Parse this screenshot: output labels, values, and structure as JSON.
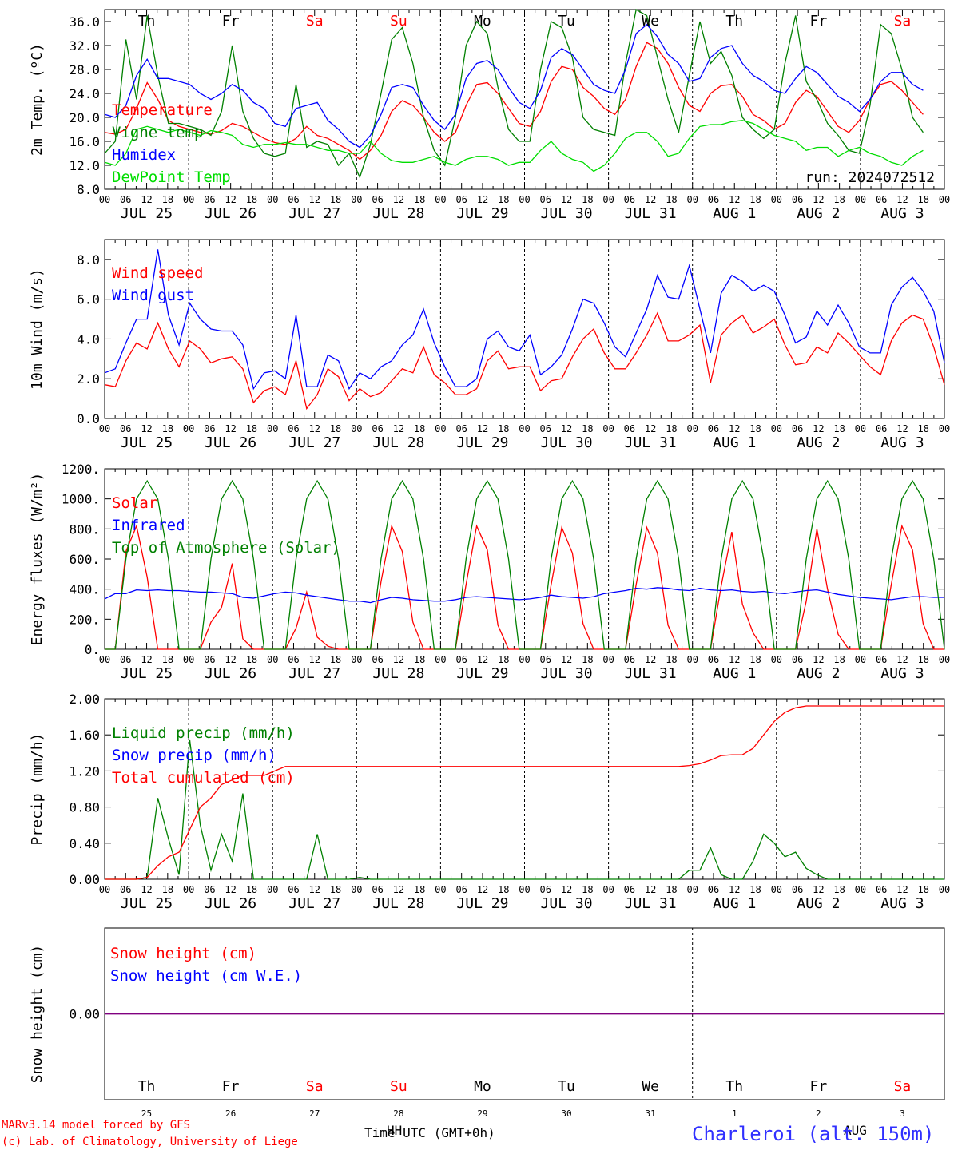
{
  "site": "Charleroi (alt. 150m)",
  "run_label": "run: 2024072512",
  "footer": {
    "model": "MARv3.14 model forced by GFS",
    "copyright": "(c) Lab. of Climatology, University of Liege",
    "time_label": "Time UTC (GMT+0h)",
    "overlap_text_1": "HH",
    "overlap_text_2": "AUG"
  },
  "colors": {
    "red": "#ff0000",
    "blue": "#0000ff",
    "green": "#008000",
    "lightgreen": "#00dd00",
    "purple": "#800080"
  },
  "days": [
    {
      "dow": "Th",
      "date": "JUL 25",
      "num": "25",
      "weekend": false
    },
    {
      "dow": "Fr",
      "date": "JUL 26",
      "num": "26",
      "weekend": false
    },
    {
      "dow": "Sa",
      "date": "JUL 27",
      "num": "27",
      "weekend": true
    },
    {
      "dow": "Su",
      "date": "JUL 28",
      "num": "28",
      "weekend": true
    },
    {
      "dow": "Mo",
      "date": "JUL 29",
      "num": "29",
      "weekend": false
    },
    {
      "dow": "Tu",
      "date": "JUL 30",
      "num": "30",
      "weekend": false
    },
    {
      "dow": "We",
      "date": "JUL 31",
      "num": "31",
      "weekend": false
    },
    {
      "dow": "Th",
      "date": "AUG 1",
      "num": "1",
      "weekend": false
    },
    {
      "dow": "Fr",
      "date": "AUG 2",
      "num": "2",
      "weekend": false
    },
    {
      "dow": "Sa",
      "date": "AUG 3",
      "num": "3",
      "weekend": true
    }
  ],
  "hour_ticks": [
    "00",
    "06",
    "12",
    "18"
  ],
  "end_tick": "00",
  "chart_data": [
    {
      "type": "line",
      "ylabel": "2m Temp. (ºC)",
      "ylim": [
        8,
        38
      ],
      "yticks": [
        "8.0",
        "12.0",
        "16.0",
        "20.0",
        "24.0",
        "28.0",
        "32.0",
        "36.0"
      ],
      "x": "hours since JUL 25 00 UTC, every 3h",
      "series": [
        {
          "name": "Temperature",
          "color": "red",
          "values": [
            17.5,
            17.2,
            18,
            21.5,
            25.8,
            23,
            19.5,
            18.5,
            18,
            17.5,
            17.2,
            17.8,
            19,
            18.5,
            17.5,
            16.5,
            15.8,
            15.5,
            16.5,
            18.5,
            17,
            16.5,
            15.5,
            14.5,
            13,
            14.5,
            17,
            21,
            22.8,
            22,
            20,
            17.5,
            16,
            17.5,
            22,
            25.5,
            25.8,
            24,
            21.5,
            19,
            18.5,
            21,
            26,
            28.5,
            28,
            25,
            23.5,
            21.5,
            20.5,
            23,
            28.5,
            32.5,
            31.5,
            29,
            25,
            22,
            21,
            24,
            25.3,
            25.5,
            23.5,
            20.5,
            19.5,
            18,
            19,
            22.5,
            24.5,
            23.5,
            21,
            18.5,
            17.5,
            19.5,
            23,
            25.5,
            26,
            24.5,
            22.5,
            20.5
          ]
        },
        {
          "name": "Vigne temp",
          "color": "green",
          "values": [
            14,
            16,
            33,
            23,
            37,
            27,
            19,
            19,
            18.5,
            18,
            17,
            21,
            32,
            21,
            16.5,
            14,
            13.5,
            14,
            25.5,
            15,
            16,
            15.5,
            12,
            14,
            10,
            15.5,
            24,
            33,
            35,
            29,
            20,
            14.5,
            12,
            20,
            32,
            36,
            34,
            25,
            18,
            16,
            16,
            28,
            36,
            35,
            30,
            20,
            18,
            17.5,
            17,
            29,
            38,
            37,
            30,
            23,
            17.5,
            27,
            36,
            29,
            31,
            27,
            20,
            18,
            16.5,
            18,
            29,
            37,
            26,
            23,
            19,
            17,
            14.5,
            14,
            22,
            35.5,
            34,
            28,
            20,
            17.5
          ]
        },
        {
          "name": "Humidex",
          "color": "blue",
          "values": [
            20.5,
            20,
            22,
            27,
            29.7,
            26.5,
            26.5,
            26,
            25.5,
            24,
            23,
            24,
            25.5,
            24.5,
            22.5,
            21.5,
            19,
            18.5,
            21.5,
            22,
            22.5,
            19.5,
            18,
            16,
            15,
            17,
            20.5,
            25,
            25.5,
            25,
            22,
            19.5,
            18,
            20.5,
            26.5,
            29,
            29.5,
            28,
            25,
            22.5,
            21.5,
            24.5,
            30,
            31.5,
            30.5,
            28,
            25.5,
            24.5,
            24,
            28,
            34,
            35.5,
            33.5,
            30.5,
            29,
            26,
            26.5,
            30,
            31.5,
            32,
            29,
            27,
            26,
            24.5,
            24,
            26.5,
            28.5,
            27.5,
            25.5,
            23.5,
            22.5,
            21,
            23,
            26,
            27.5,
            27.5,
            25.5,
            24.5
          ]
        },
        {
          "name": "DewPoint Temp",
          "color": "lightgreen",
          "values": [
            12.5,
            12,
            14,
            18,
            18.5,
            18,
            17.5,
            18,
            17.5,
            17,
            17.8,
            17.5,
            17,
            15.5,
            15,
            15.5,
            15.5,
            15.8,
            15.5,
            15.5,
            15,
            14.5,
            14.5,
            14,
            14,
            16,
            14,
            12.8,
            12.5,
            12.5,
            13,
            13.5,
            12.5,
            12,
            13,
            13.5,
            13.5,
            13,
            12,
            12.5,
            12.5,
            14.5,
            16,
            14,
            13,
            12.5,
            11,
            12,
            14,
            16.5,
            17.5,
            17.5,
            16,
            13.5,
            14,
            16.5,
            18.5,
            18.8,
            18.8,
            19.3,
            19.5,
            19,
            18,
            17,
            16.5,
            16,
            14.5,
            15,
            15,
            13.5,
            14.5,
            15,
            14,
            13.5,
            12.5,
            12,
            13.5,
            14.5
          ]
        }
      ]
    },
    {
      "type": "line",
      "ylabel": "10m Wind (m/s)",
      "ylim": [
        0,
        9
      ],
      "yticks": [
        "0.0",
        "2.0",
        "4.0",
        "6.0",
        "8.0"
      ],
      "reference_line": 5,
      "series": [
        {
          "name": "Wind speed",
          "color": "red",
          "values": [
            1.7,
            1.6,
            2.9,
            3.8,
            3.5,
            4.8,
            3.5,
            2.6,
            3.9,
            3.5,
            2.8,
            3,
            3.1,
            2.5,
            0.8,
            1.4,
            1.6,
            1.2,
            2.9,
            0.5,
            1.2,
            2.5,
            2.1,
            0.9,
            1.5,
            1.1,
            1.3,
            1.9,
            2.5,
            2.3,
            3.6,
            2.2,
            1.8,
            1.2,
            1.2,
            1.5,
            2.9,
            3.4,
            2.5,
            2.6,
            2.6,
            1.4,
            1.9,
            2,
            3.1,
            4,
            4.5,
            3.3,
            2.5,
            2.5,
            3.3,
            4.2,
            5.3,
            3.9,
            3.9,
            4.2,
            4.7,
            1.8,
            4.2,
            4.8,
            5.2,
            4.3,
            4.6,
            5,
            3.7,
            2.7,
            2.8,
            3.6,
            3.3,
            4.3,
            3.8,
            3.2,
            2.6,
            2.2,
            3.9,
            4.8,
            5.2,
            5,
            3.6,
            1.7
          ]
        },
        {
          "name": "Wind gust",
          "color": "blue",
          "values": [
            2.3,
            2.5,
            3.8,
            5,
            5,
            8.5,
            5.2,
            3.7,
            5.8,
            5,
            4.5,
            4.4,
            4.4,
            3.7,
            1.5,
            2.3,
            2.4,
            2,
            5.2,
            1.6,
            1.6,
            3.2,
            2.9,
            1.5,
            2.3,
            2,
            2.6,
            2.9,
            3.7,
            4.2,
            5.5,
            3.8,
            2.6,
            1.6,
            1.6,
            2,
            4,
            4.4,
            3.6,
            3.4,
            4.2,
            2.2,
            2.6,
            3.2,
            4.5,
            6,
            5.8,
            4.8,
            3.6,
            3.1,
            4.3,
            5.5,
            7.2,
            6.1,
            6,
            7.7,
            5.5,
            3.3,
            6.3,
            7.2,
            6.9,
            6.4,
            6.7,
            6.4,
            5.2,
            3.8,
            4.1,
            5.4,
            4.7,
            5.7,
            4.8,
            3.6,
            3.3,
            3.3,
            5.7,
            6.6,
            7.1,
            6.4,
            5.4,
            2.8
          ]
        }
      ]
    },
    {
      "type": "line",
      "ylabel": "Energy fluxes (W/m²)",
      "ylim": [
        0,
        1200
      ],
      "yticks": [
        "0.",
        "200.",
        "400.",
        "600.",
        "800.",
        "1000.",
        "1200."
      ],
      "series": [
        {
          "name": "Solar",
          "color": "red",
          "values": [
            0,
            0,
            650,
            820,
            480,
            0,
            0,
            0,
            0,
            0,
            180,
            280,
            570,
            70,
            0,
            0,
            0,
            0,
            140,
            380,
            80,
            20,
            0,
            0,
            0,
            0,
            450,
            820,
            650,
            180,
            0,
            0,
            0,
            0,
            430,
            820,
            660,
            160,
            0,
            0,
            0,
            0,
            430,
            810,
            640,
            170,
            0,
            0,
            0,
            0,
            430,
            810,
            640,
            160,
            0,
            0,
            0,
            0,
            420,
            780,
            300,
            110,
            0,
            0,
            0,
            0,
            320,
            800,
            400,
            100,
            0,
            0,
            0,
            0,
            430,
            820,
            660,
            170,
            0,
            0
          ]
        },
        {
          "name": "Infrared",
          "color": "blue",
          "values": [
            335,
            370,
            370,
            395,
            390,
            395,
            390,
            390,
            385,
            380,
            380,
            375,
            370,
            345,
            340,
            355,
            370,
            380,
            375,
            360,
            350,
            340,
            330,
            320,
            320,
            310,
            330,
            345,
            340,
            330,
            325,
            320,
            320,
            330,
            345,
            350,
            345,
            340,
            335,
            330,
            335,
            345,
            360,
            350,
            345,
            340,
            350,
            370,
            380,
            390,
            405,
            400,
            410,
            405,
            395,
            390,
            405,
            395,
            390,
            395,
            385,
            380,
            385,
            375,
            370,
            380,
            390,
            395,
            380,
            365,
            355,
            345,
            340,
            335,
            330,
            340,
            350,
            350,
            345,
            345
          ]
        },
        {
          "name": "Top of Atmosphere (Solar)",
          "color": "green",
          "values": [
            0,
            0,
            600,
            1000,
            1120,
            1000,
            600,
            0,
            0,
            0,
            600,
            1000,
            1120,
            1000,
            600,
            0,
            0,
            0,
            600,
            1000,
            1120,
            1000,
            600,
            0,
            0,
            0,
            600,
            1000,
            1120,
            1000,
            600,
            0,
            0,
            0,
            600,
            1000,
            1120,
            1000,
            600,
            0,
            0,
            0,
            600,
            1000,
            1120,
            1000,
            600,
            0,
            0,
            0,
            600,
            1000,
            1120,
            1000,
            600,
            0,
            0,
            0,
            600,
            1000,
            1120,
            1000,
            600,
            0,
            0,
            0,
            600,
            1000,
            1120,
            1000,
            600,
            0,
            0,
            0,
            600,
            1000,
            1120,
            1000,
            600,
            0
          ]
        }
      ]
    },
    {
      "type": "line",
      "ylabel": "Precip (mm/h)",
      "ylim": [
        0,
        2
      ],
      "yticks": [
        "0.00",
        "0.40",
        "0.80",
        "1.20",
        "1.60",
        "2.00"
      ],
      "series": [
        {
          "name": "Liquid precip (mm/h)",
          "color": "green",
          "values": [
            0,
            0,
            0,
            0,
            0.02,
            0.9,
            0.45,
            0.05,
            1.55,
            0.6,
            0.1,
            0.5,
            0.2,
            0.95,
            0,
            0,
            0,
            0,
            0,
            0,
            0.5,
            0,
            0,
            0,
            0.02,
            0,
            0,
            0,
            0,
            0,
            0,
            0,
            0,
            0,
            0,
            0,
            0,
            0,
            0,
            0,
            0,
            0,
            0,
            0,
            0,
            0,
            0,
            0,
            0,
            0,
            0,
            0,
            0,
            0,
            0,
            0.1,
            0.1,
            0.35,
            0.05,
            0,
            0,
            0.2,
            0.5,
            0.4,
            0.25,
            0.3,
            0.12,
            0.05,
            0,
            0,
            0,
            0,
            0,
            0,
            0,
            0,
            0,
            0,
            0,
            0
          ]
        },
        {
          "name": "Snow precip (mm/h)",
          "color": "blue",
          "values": []
        },
        {
          "name": "Total cumulated (cm)",
          "color": "red",
          "values": [
            0,
            0,
            0,
            0,
            0.02,
            0.15,
            0.25,
            0.3,
            0.55,
            0.8,
            0.9,
            1.05,
            1.1,
            1.15,
            1.15,
            1.15,
            1.2,
            1.25,
            1.25,
            1.25,
            1.25,
            1.25,
            1.25,
            1.25,
            1.25,
            1.25,
            1.25,
            1.25,
            1.25,
            1.25,
            1.25,
            1.25,
            1.25,
            1.25,
            1.25,
            1.25,
            1.25,
            1.25,
            1.25,
            1.25,
            1.25,
            1.25,
            1.25,
            1.25,
            1.25,
            1.25,
            1.25,
            1.25,
            1.25,
            1.25,
            1.25,
            1.25,
            1.25,
            1.25,
            1.25,
            1.26,
            1.28,
            1.32,
            1.37,
            1.38,
            1.38,
            1.45,
            1.6,
            1.75,
            1.85,
            1.9,
            1.92,
            1.92,
            1.92,
            1.92,
            1.92,
            1.92,
            1.92,
            1.92,
            1.92,
            1.92,
            1.92,
            1.92,
            1.92,
            1.92
          ]
        }
      ]
    },
    {
      "type": "line",
      "ylabel": "Snow height (cm)",
      "ylim": [
        -1,
        1
      ],
      "yticks": [
        "0.00"
      ],
      "series": [
        {
          "name": "Snow height (cm)",
          "color": "red",
          "values": [
            0,
            0
          ]
        },
        {
          "name": "Snow height (cm W.E.)",
          "color": "blue",
          "values": [
            0,
            0
          ]
        }
      ]
    }
  ]
}
